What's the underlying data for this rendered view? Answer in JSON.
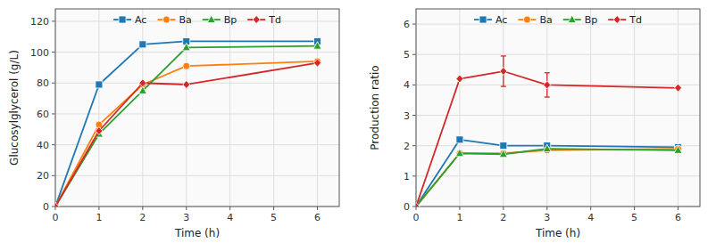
{
  "chart_data": [
    {
      "type": "line",
      "xlabel": "Time (h)",
      "ylabel": "Glucosylglycerol (g/L)",
      "x": [
        0,
        1,
        2,
        3,
        6
      ],
      "xlim": [
        0,
        6.5
      ],
      "ylim": [
        0,
        128
      ],
      "xticks": [
        0,
        1,
        2,
        3,
        4,
        5,
        6
      ],
      "yticks": [
        0,
        20,
        40,
        60,
        80,
        100,
        120
      ],
      "grid": true,
      "legend": "top",
      "series": [
        {
          "name": "Ac",
          "color": "#1f77b4",
          "marker": "square",
          "values": [
            0,
            79,
            105,
            107,
            107
          ]
        },
        {
          "name": "Ba",
          "color": "#ff7f0e",
          "marker": "circle",
          "values": [
            0,
            53,
            79,
            91,
            94
          ]
        },
        {
          "name": "Bp",
          "color": "#2ca02c",
          "marker": "triangle",
          "values": [
            0,
            47,
            75,
            103,
            104
          ]
        },
        {
          "name": "Td",
          "color": "#d62728",
          "marker": "diamond",
          "values": [
            0,
            49,
            80,
            79,
            93
          ]
        }
      ]
    },
    {
      "type": "line",
      "xlabel": "Time (h)",
      "ylabel": "Production ratio",
      "x": [
        0,
        1,
        2,
        3,
        6
      ],
      "xlim": [
        0,
        6.5
      ],
      "ylim": [
        0,
        6.5
      ],
      "xticks": [
        0,
        1,
        2,
        3,
        4,
        5,
        6
      ],
      "yticks": [
        0,
        1,
        2,
        3,
        4,
        5,
        6
      ],
      "grid": true,
      "legend": "top",
      "series": [
        {
          "name": "Ac",
          "color": "#1f77b4",
          "marker": "square",
          "values": [
            0,
            2.2,
            2.0,
            2.0,
            1.95
          ],
          "errors": [
            0,
            0,
            0,
            0,
            0
          ]
        },
        {
          "name": "Ba",
          "color": "#ff7f0e",
          "marker": "circle",
          "values": [
            0,
            1.75,
            1.75,
            1.85,
            1.9
          ],
          "errors": [
            0,
            0,
            0,
            0,
            0
          ]
        },
        {
          "name": "Bp",
          "color": "#2ca02c",
          "marker": "triangle",
          "values": [
            0,
            1.75,
            1.72,
            1.9,
            1.85
          ],
          "errors": [
            0,
            0,
            0,
            0,
            0
          ]
        },
        {
          "name": "Td",
          "color": "#d62728",
          "marker": "diamond",
          "values": [
            0,
            4.2,
            4.45,
            4.0,
            3.9
          ],
          "errors": [
            0,
            0,
            0.5,
            0.4,
            0
          ]
        }
      ]
    }
  ]
}
